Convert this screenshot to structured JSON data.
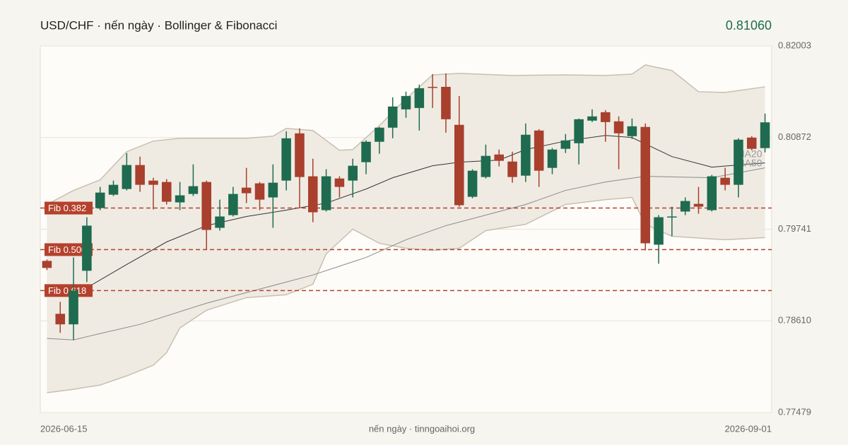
{
  "chart_data": {
    "type": "candlestick",
    "title": "USD/CHF · nến ngày · Bollinger & Fibonacci",
    "price": {
      "value": 0.8106,
      "label": "0.81060"
    },
    "footer": "nến ngày · tinngoaihoi.org",
    "categories": [
      "2026-06-15",
      null,
      null,
      null,
      null,
      null,
      null,
      null,
      null,
      null,
      null,
      null,
      null,
      null,
      null,
      null,
      null,
      null,
      null,
      null,
      null,
      null,
      null,
      null,
      null,
      null,
      null,
      null,
      null,
      null,
      null,
      null,
      null,
      null,
      null,
      null,
      null,
      null,
      null,
      null,
      null,
      null,
      null,
      null,
      null,
      null,
      null,
      null,
      null,
      null,
      null,
      null,
      null,
      null,
      "2026-09-01"
    ],
    "open": [
      0.7935,
      0.78697,
      0.78567,
      0.79228,
      0.80002,
      0.80167,
      0.80237,
      0.80533,
      0.80341,
      0.80324,
      0.80072,
      0.80176,
      0.80324,
      0.79758,
      0.79915,
      0.80254,
      0.80307,
      0.80133,
      0.80341,
      0.80924,
      0.80394,
      0.79976,
      0.80367,
      0.80341,
      0.80568,
      0.8082,
      0.80994,
      0.8122,
      0.81237,
      0.81498,
      0.81498,
      0.81029,
      0.80141,
      0.80385,
      0.80663,
      0.80576,
      0.80402,
      0.80959,
      0.80498,
      0.80733,
      0.80802,
      0.81081,
      0.81185,
      0.81072,
      0.80889,
      0.81003,
      0.7955,
      0.79889,
      0.79959,
      0.80054,
      0.79976,
      0.80376,
      0.80289,
      0.80872,
      0.80742
    ],
    "high": [
      0.79367,
      0.78845,
      0.79393,
      0.79889,
      0.80263,
      0.80341,
      0.80681,
      0.80637,
      0.80376,
      0.80359,
      0.80324,
      0.80541,
      0.80341,
      0.80106,
      0.80263,
      0.80498,
      0.80324,
      0.80541,
      0.8095,
      0.80985,
      0.80611,
      0.80481,
      0.80394,
      0.80611,
      0.80837,
      0.81003,
      0.81368,
      0.81438,
      0.81525,
      0.81655,
      0.81664,
      0.81385,
      0.80481,
      0.80785,
      0.80724,
      0.80698,
      0.81046,
      0.80976,
      0.80742,
      0.80916,
      0.81107,
      0.8122,
      0.81211,
      0.81133,
      0.81107,
      0.81046,
      0.79915,
      0.80019,
      0.80133,
      0.80263,
      0.80411,
      0.80498,
      0.80863,
      0.80889,
      0.81168
    ],
    "low": [
      0.79236,
      0.78462,
      0.78375,
      0.79089,
      0.79976,
      0.8015,
      0.8022,
      0.80202,
      0.79985,
      0.80046,
      0.79976,
      0.8015,
      0.79489,
      0.79724,
      0.79898,
      0.80063,
      0.79976,
      0.79758,
      0.8022,
      0.80002,
      0.79828,
      0.79959,
      0.80133,
      0.80133,
      0.8042,
      0.80672,
      0.80863,
      0.81116,
      0.80959,
      0.81237,
      0.80933,
      0.80019,
      0.80124,
      0.80367,
      0.80515,
      0.80315,
      0.80324,
      0.80263,
      0.8042,
      0.80681,
      0.80541,
      0.81063,
      0.8082,
      0.80481,
      0.80855,
      0.7948,
      0.79315,
      0.79654,
      0.79915,
      0.79932,
      0.79959,
      0.8022,
      0.80133,
      0.80715,
      0.80689
    ],
    "close": [
      0.79263,
      0.78567,
      0.78984,
      0.79785,
      0.80193,
      0.80289,
      0.80533,
      0.80289,
      0.80289,
      0.8008,
      0.80159,
      0.80272,
      0.79732,
      0.79898,
      0.80176,
      0.80185,
      0.80106,
      0.80315,
      0.80863,
      0.80385,
      0.7995,
      0.80394,
      0.80263,
      0.80524,
      0.8082,
      0.80994,
      0.81255,
      0.81385,
      0.81481,
      0.8149,
      0.81098,
      0.80037,
      0.80463,
      0.80646,
      0.80585,
      0.80385,
      0.80907,
      0.80463,
      0.80724,
      0.80837,
      0.81098,
      0.81133,
      0.81063,
      0.80924,
      0.81011,
      0.79567,
      0.79889,
      0.79898,
      0.80089,
      0.80019,
      0.80394,
      0.80289,
      0.80846,
      0.80733,
      0.8106
    ],
    "up_color": "#1f6b4f",
    "down_color": "#a8402d",
    "bollinger": {
      "color": "#c9bfb0",
      "fill": "#efebe3",
      "upper": {
        "x": [
          0,
          2,
          4,
          6,
          8,
          10,
          15,
          17,
          18,
          20,
          22,
          23,
          25,
          27,
          29,
          31,
          35,
          39,
          42,
          44,
          45,
          47,
          49,
          51,
          54
        ],
        "values": [
          0.80046,
          0.8022,
          0.8035,
          0.80698,
          0.80829,
          0.80863,
          0.80863,
          0.80889,
          0.80985,
          0.80959,
          0.80715,
          0.80724,
          0.8102,
          0.81351,
          0.81646,
          0.81664,
          0.81638,
          0.81646,
          0.81638,
          0.81655,
          0.81768,
          0.81699,
          0.81438,
          0.81429,
          0.81498
        ]
      },
      "lower": {
        "x": [
          0,
          2,
          4,
          6,
          8,
          9,
          10,
          12,
          15,
          18,
          20,
          21,
          23,
          25,
          27,
          29,
          31,
          33,
          36,
          39,
          42,
          44,
          45,
          47,
          51,
          54
        ],
        "values": [
          0.77723,
          0.77766,
          0.77818,
          0.77931,
          0.78062,
          0.78219,
          0.78523,
          0.78741,
          0.78897,
          0.78932,
          0.79062,
          0.79437,
          0.79741,
          0.79567,
          0.79506,
          0.7948,
          0.79506,
          0.79724,
          0.79802,
          0.80046,
          0.80106,
          0.80133,
          0.79802,
          0.79654,
          0.79611,
          0.79637
        ]
      }
    },
    "lines": [
      {
        "name": "MA20",
        "color": "#333333",
        "x": [
          2,
          3,
          6,
          9,
          12,
          15,
          18,
          21,
          24,
          26,
          29,
          31,
          34,
          36,
          39,
          42,
          44,
          47,
          50,
          54
        ],
        "values": [
          0.78958,
          0.79019,
          0.79306,
          0.79584,
          0.79785,
          0.79898,
          0.79976,
          0.80063,
          0.80237,
          0.80376,
          0.80524,
          0.80568,
          0.80594,
          0.80724,
          0.80829,
          0.80898,
          0.80872,
          0.80637,
          0.80507,
          0.80559
        ]
      },
      {
        "name": "MA50",
        "color": "#8a8a8a",
        "x": [
          0,
          2,
          4,
          7,
          12,
          16,
          20,
          24,
          27,
          30,
          33,
          36,
          39,
          42,
          45,
          50,
          54
        ],
        "values": [
          0.78393,
          0.78375,
          0.78453,
          0.78567,
          0.78828,
          0.79002,
          0.79176,
          0.79393,
          0.79611,
          0.79785,
          0.79915,
          0.80046,
          0.8022,
          0.80324,
          0.80394,
          0.80376,
          0.80498
        ]
      }
    ],
    "fib_levels": [
      {
        "label": "Fib 0.382",
        "value": 0.80002
      },
      {
        "label": "Fib 0.500",
        "value": 0.79489
      },
      {
        "label": "Fib 0.618",
        "value": 0.78984
      }
    ],
    "fib_color": "#b5412c",
    "ylim": [
      0.77479,
      0.82003
    ],
    "yticks": [
      {
        "value": 0.77479,
        "label": "0.77479"
      },
      {
        "value": 0.7861,
        "label": "0.78610"
      },
      {
        "value": 0.79741,
        "label": "0.79741"
      },
      {
        "value": 0.80872,
        "label": "0.80872"
      },
      {
        "value": 0.82003,
        "label": "0.82003"
      }
    ],
    "grid": true
  }
}
